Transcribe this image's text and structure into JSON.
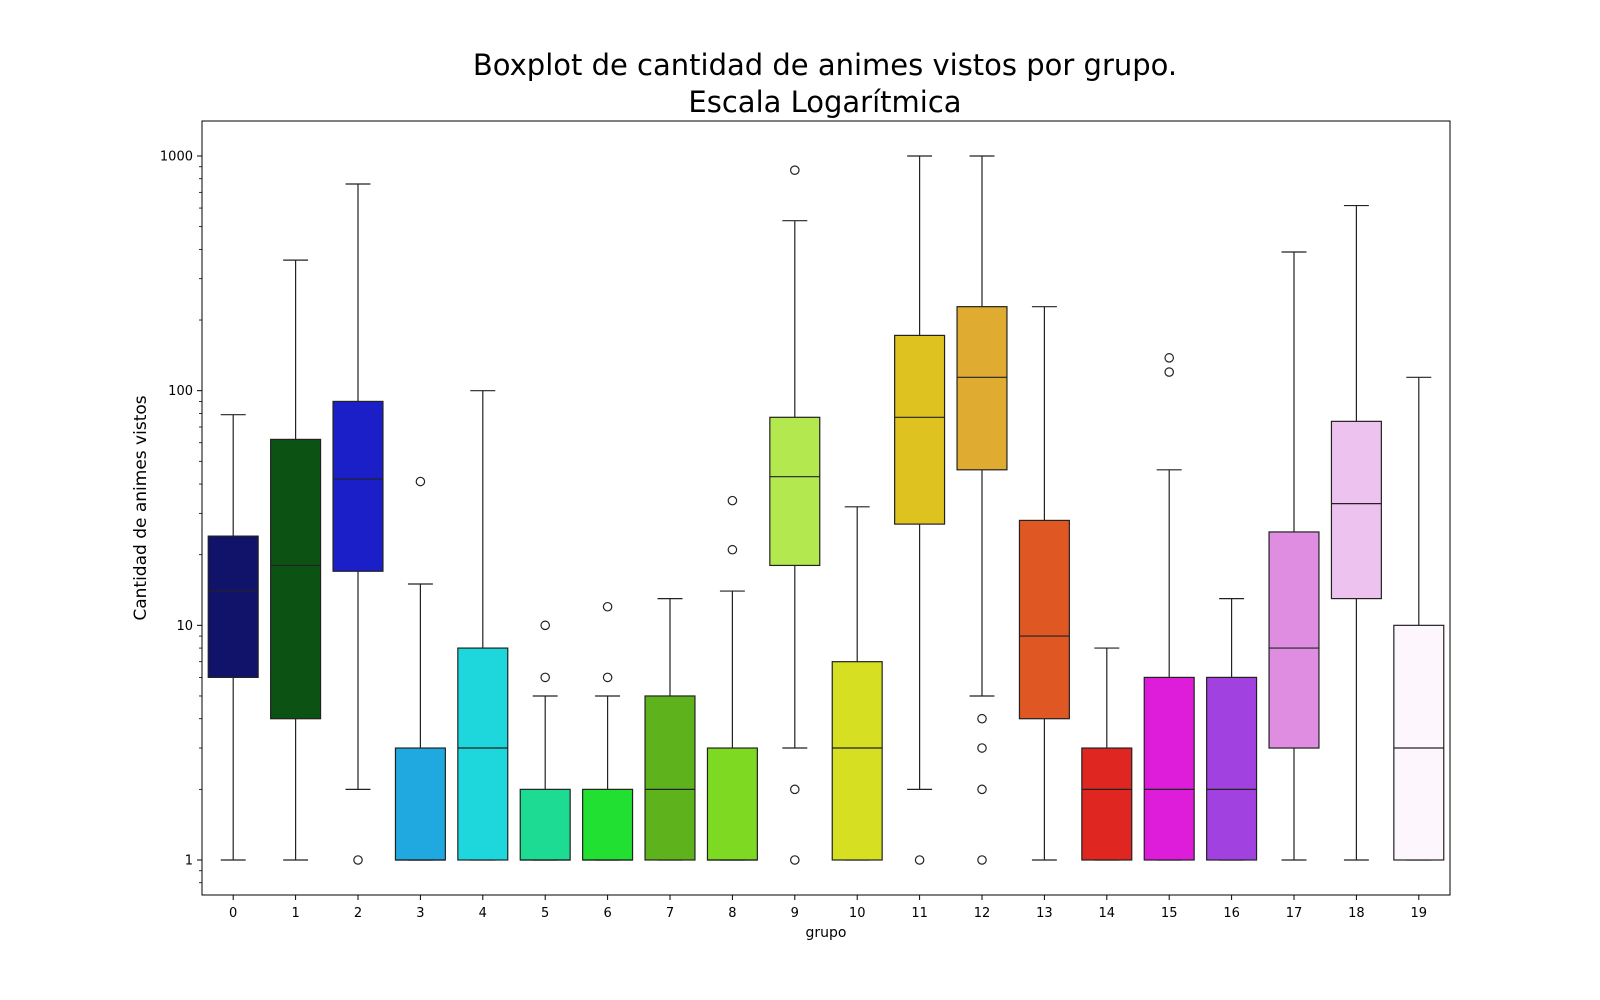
{
  "chart_data": {
    "type": "box",
    "title_line1": "Boxplot de cantidad de animes vistos por grupo.",
    "title_line2": "Escala Logarítmica",
    "xlabel": "grupo",
    "ylabel": "Cantidad de animes vistos",
    "yscale": "log",
    "ylim": [
      0.67,
      1450
    ],
    "yticks": [
      1,
      10,
      100,
      1000
    ],
    "ytick_labels": [
      "1",
      "10",
      "100",
      "1000"
    ],
    "grid": false,
    "categories": [
      "0",
      "1",
      "2",
      "3",
      "4",
      "5",
      "6",
      "7",
      "8",
      "9",
      "10",
      "11",
      "12",
      "13",
      "14",
      "15",
      "16",
      "17",
      "18",
      "19"
    ],
    "boxes": [
      {
        "group": "0",
        "color": "#11136b",
        "whislo": 1,
        "q1": 6,
        "med": 14,
        "q3": 24,
        "whishi": 79,
        "fliers": []
      },
      {
        "group": "1",
        "color": "#0c5213",
        "whislo": 1,
        "q1": 4,
        "med": 18,
        "q3": 62,
        "whishi": 360,
        "fliers": []
      },
      {
        "group": "2",
        "color": "#1b1fc7",
        "whislo": 2,
        "q1": 17,
        "med": 42,
        "q3": 90,
        "whishi": 760,
        "fliers": [
          1
        ]
      },
      {
        "group": "3",
        "color": "#1fa9e0",
        "whislo": 1,
        "q1": 1,
        "med": 1,
        "q3": 3,
        "whishi": 15,
        "fliers": [
          41
        ]
      },
      {
        "group": "4",
        "color": "#1dd7dc",
        "whislo": 1,
        "q1": 1,
        "med": 3,
        "q3": 8,
        "whishi": 100,
        "fliers": []
      },
      {
        "group": "5",
        "color": "#1edb93",
        "whislo": 1,
        "q1": 1,
        "med": 1,
        "q3": 2,
        "whishi": 5,
        "fliers": [
          6,
          10
        ]
      },
      {
        "group": "6",
        "color": "#21e032",
        "whislo": 1,
        "q1": 1,
        "med": 1,
        "q3": 2,
        "whishi": 5,
        "fliers": [
          6,
          12
        ]
      },
      {
        "group": "7",
        "color": "#5eb31c",
        "whislo": 1,
        "q1": 1,
        "med": 2,
        "q3": 5,
        "whishi": 13,
        "fliers": []
      },
      {
        "group": "8",
        "color": "#7dd921",
        "whislo": 1,
        "q1": 1,
        "med": 1,
        "q3": 3,
        "whishi": 14,
        "fliers": [
          21,
          34
        ]
      },
      {
        "group": "9",
        "color": "#b4e84f",
        "whislo": 3,
        "q1": 18,
        "med": 43,
        "q3": 77,
        "whishi": 530,
        "fliers": [
          1,
          2,
          870
        ]
      },
      {
        "group": "10",
        "color": "#d6df22",
        "whislo": 1,
        "q1": 1,
        "med": 3,
        "q3": 7,
        "whishi": 32,
        "fliers": []
      },
      {
        "group": "11",
        "color": "#dec220",
        "whislo": 2,
        "q1": 27,
        "med": 77,
        "q3": 172,
        "whishi": 1000,
        "fliers": [
          1
        ]
      },
      {
        "group": "12",
        "color": "#e0ab31",
        "whislo": 5,
        "q1": 46,
        "med": 114,
        "q3": 228,
        "whishi": 1000,
        "fliers": [
          1,
          2,
          3,
          4
        ]
      },
      {
        "group": "13",
        "color": "#df5722",
        "whislo": 1,
        "q1": 4,
        "med": 9,
        "q3": 28,
        "whishi": 228,
        "fliers": []
      },
      {
        "group": "14",
        "color": "#df2620",
        "whislo": 1,
        "q1": 1,
        "med": 2,
        "q3": 3,
        "whishi": 8,
        "fliers": []
      },
      {
        "group": "15",
        "color": "#de1ddb",
        "whislo": 1,
        "q1": 1,
        "med": 2,
        "q3": 6,
        "whishi": 46,
        "fliers": [
          120,
          138
        ]
      },
      {
        "group": "16",
        "color": "#a142e0",
        "whislo": 1,
        "q1": 1,
        "med": 2,
        "q3": 6,
        "whishi": 13,
        "fliers": []
      },
      {
        "group": "17",
        "color": "#df8de0",
        "whislo": 1,
        "q1": 3,
        "med": 8,
        "q3": 25,
        "whishi": 390,
        "fliers": []
      },
      {
        "group": "18",
        "color": "#eec2ee",
        "whislo": 1,
        "q1": 13,
        "med": 33,
        "q3": 74,
        "whishi": 615,
        "fliers": []
      },
      {
        "group": "19",
        "color": "#fdf7fd",
        "whislo": 1,
        "q1": 1,
        "med": 3,
        "q3": 10,
        "whishi": 114,
        "fliers": []
      }
    ]
  }
}
